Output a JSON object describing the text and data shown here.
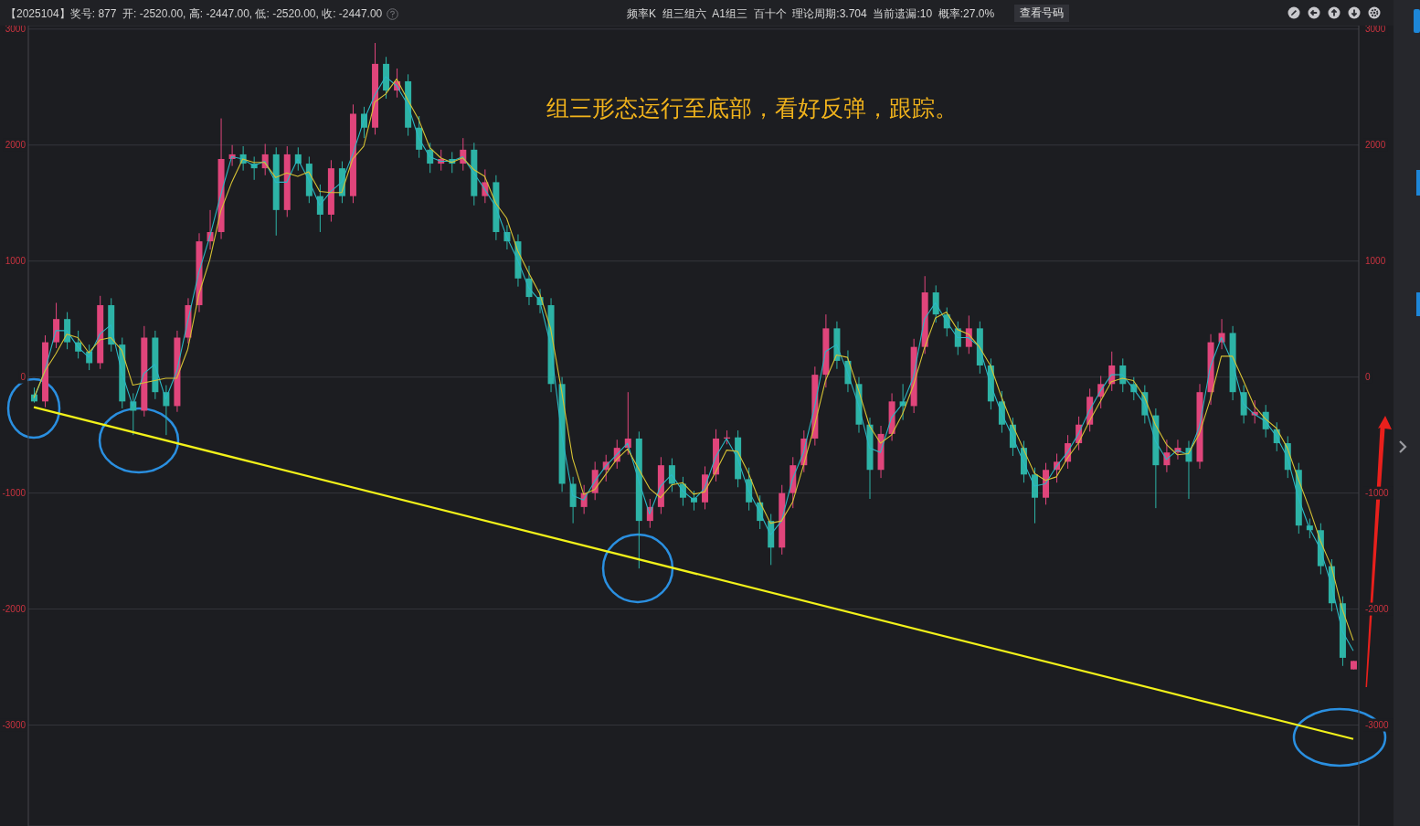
{
  "chart_data": {
    "type": "candlestick",
    "title": "【2025104】奖号: 877  开: -2520.00, 高: -2447.00, 低: -2520.00, 收: -2447.00",
    "subtitle": "频率K  组三组六  A1组三  百十个  理论周期:3.704  当前遗漏:10  概率:27.0%",
    "annotations": [
      "组三形态运行至底部，看好反弹，跟踪。",
      "查看号码"
    ],
    "categories": [
      null,
      null,
      null,
      null,
      null,
      null,
      null,
      null,
      null,
      null,
      null,
      null,
      null,
      null,
      null,
      null,
      null,
      null,
      null,
      null,
      null,
      null,
      null,
      null,
      null,
      null,
      null,
      null,
      null,
      null,
      null,
      null,
      null,
      null,
      null,
      null,
      null,
      null,
      null,
      null,
      null,
      null,
      null,
      null,
      null,
      null,
      null,
      null,
      null,
      null,
      null,
      null,
      null,
      null,
      null,
      null,
      null,
      null,
      null,
      null,
      null,
      null,
      null,
      null,
      null,
      null,
      null,
      null,
      null,
      null,
      null,
      null,
      null,
      null,
      null,
      null,
      null,
      null,
      null,
      null,
      null,
      null,
      null,
      null,
      null,
      null,
      null,
      null,
      null,
      null,
      null,
      null,
      null,
      null,
      null,
      null,
      null,
      null,
      null,
      null,
      null,
      null,
      null,
      null,
      null,
      null,
      null,
      null,
      null,
      null,
      null,
      null,
      null,
      null,
      null,
      null,
      null,
      null,
      null,
      null,
      null
    ],
    "ohlc": [
      [
        -150,
        -90,
        -220,
        -210
      ],
      [
        -210,
        360,
        -260,
        300
      ],
      [
        300,
        640,
        250,
        500
      ],
      [
        500,
        560,
        240,
        300
      ],
      [
        300,
        400,
        160,
        220
      ],
      [
        220,
        280,
        60,
        120
      ],
      [
        120,
        700,
        70,
        620
      ],
      [
        620,
        680,
        220,
        280
      ],
      [
        280,
        340,
        -270,
        -210
      ],
      [
        -210,
        -140,
        -500,
        -290
      ],
      [
        -290,
        440,
        -340,
        340
      ],
      [
        340,
        400,
        -190,
        -130
      ],
      [
        -130,
        -70,
        -500,
        -250
      ],
      [
        -250,
        400,
        -300,
        340
      ],
      [
        340,
        680,
        290,
        620
      ],
      [
        620,
        1240,
        560,
        1170
      ],
      [
        1170,
        1440,
        1100,
        1250
      ],
      [
        1250,
        2230,
        1190,
        1880
      ],
      [
        1880,
        2000,
        1820,
        1920
      ],
      [
        1920,
        1990,
        1780,
        1840
      ],
      [
        1840,
        1900,
        1700,
        1800
      ],
      [
        1800,
        2010,
        1740,
        1920
      ],
      [
        1920,
        1980,
        1220,
        1440
      ],
      [
        1440,
        1990,
        1380,
        1920
      ],
      [
        1920,
        1980,
        1780,
        1840
      ],
      [
        1840,
        1900,
        1500,
        1560
      ],
      [
        1560,
        1660,
        1250,
        1400
      ],
      [
        1400,
        1870,
        1340,
        1800
      ],
      [
        1800,
        1860,
        1500,
        1560
      ],
      [
        1560,
        2350,
        1500,
        2270
      ],
      [
        2270,
        2330,
        2060,
        2150
      ],
      [
        2150,
        2880,
        2090,
        2700
      ],
      [
        2700,
        2760,
        2400,
        2470
      ],
      [
        2470,
        2660,
        2410,
        2550
      ],
      [
        2550,
        2610,
        2080,
        2150
      ],
      [
        2150,
        2250,
        1890,
        1960
      ],
      [
        1960,
        2020,
        1760,
        1840
      ],
      [
        1840,
        1960,
        1780,
        1880
      ],
      [
        1880,
        1940,
        1760,
        1840
      ],
      [
        1840,
        2060,
        1780,
        1960
      ],
      [
        1960,
        2020,
        1480,
        1560
      ],
      [
        1560,
        1790,
        1500,
        1680
      ],
      [
        1680,
        1740,
        1180,
        1250
      ],
      [
        1250,
        1310,
        1100,
        1170
      ],
      [
        1170,
        1230,
        780,
        850
      ],
      [
        850,
        960,
        620,
        690
      ],
      [
        690,
        760,
        550,
        620
      ],
      [
        620,
        680,
        -130,
        -60
      ],
      [
        -60,
        0,
        -990,
        -920
      ],
      [
        -920,
        -860,
        -1260,
        -1120
      ],
      [
        -1120,
        -930,
        -1180,
        -1000
      ],
      [
        -1000,
        -730,
        -1060,
        -800
      ],
      [
        -800,
        -670,
        -900,
        -730
      ],
      [
        -730,
        -540,
        -790,
        -610
      ],
      [
        -610,
        -130,
        -670,
        -530
      ],
      [
        -530,
        -470,
        -1650,
        -1240
      ],
      [
        -1240,
        -1050,
        -1300,
        -1120
      ],
      [
        -1120,
        -690,
        -1180,
        -760
      ],
      [
        -760,
        -700,
        -990,
        -920
      ],
      [
        -920,
        -860,
        -1110,
        -1040
      ],
      [
        -1040,
        -980,
        -1150,
        -1080
      ],
      [
        -1080,
        -770,
        -1140,
        -840
      ],
      [
        -840,
        -450,
        -900,
        -530
      ],
      [
        -530,
        -460,
        -580,
        -520
      ],
      [
        -520,
        -460,
        -950,
        -880
      ],
      [
        -880,
        -780,
        -1150,
        -1080
      ],
      [
        -1080,
        -1020,
        -1310,
        -1240
      ],
      [
        -1240,
        -1180,
        -1620,
        -1470
      ],
      [
        -1470,
        -930,
        -1530,
        -1000
      ],
      [
        -1000,
        -690,
        -1130,
        -760
      ],
      [
        -760,
        -460,
        -820,
        -530
      ],
      [
        -530,
        90,
        -590,
        20
      ],
      [
        20,
        540,
        -90,
        420
      ],
      [
        420,
        480,
        70,
        140
      ],
      [
        140,
        230,
        -130,
        -60
      ],
      [
        -60,
        0,
        -480,
        -410
      ],
      [
        -410,
        -350,
        -1050,
        -800
      ],
      [
        -800,
        -420,
        -870,
        -490
      ],
      [
        -490,
        -140,
        -550,
        -210
      ],
      [
        -210,
        -60,
        -370,
        -250
      ],
      [
        -250,
        330,
        -310,
        260
      ],
      [
        260,
        870,
        200,
        730
      ],
      [
        730,
        790,
        470,
        540
      ],
      [
        540,
        600,
        350,
        420
      ],
      [
        420,
        480,
        190,
        260
      ],
      [
        260,
        530,
        200,
        420
      ],
      [
        420,
        480,
        30,
        100
      ],
      [
        100,
        160,
        -280,
        -210
      ],
      [
        -210,
        -120,
        -480,
        -410
      ],
      [
        -410,
        -350,
        -680,
        -610
      ],
      [
        -610,
        -550,
        -910,
        -840
      ],
      [
        -840,
        -780,
        -1260,
        -1040
      ],
      [
        -1040,
        -740,
        -1100,
        -800
      ],
      [
        -800,
        -660,
        -910,
        -730
      ],
      [
        -730,
        -500,
        -790,
        -570
      ],
      [
        -570,
        -340,
        -630,
        -410
      ],
      [
        -410,
        -100,
        -470,
        -170
      ],
      [
        -170,
        10,
        -270,
        -60
      ],
      [
        -60,
        220,
        -120,
        100
      ],
      [
        100,
        160,
        -130,
        -60
      ],
      [
        -60,
        0,
        -200,
        -130
      ],
      [
        -130,
        -70,
        -400,
        -330
      ],
      [
        -330,
        -270,
        -1130,
        -760
      ],
      [
        -760,
        -540,
        -820,
        -650
      ],
      [
        -650,
        -540,
        -710,
        -610
      ],
      [
        -610,
        -550,
        -1050,
        -730
      ],
      [
        -730,
        -60,
        -790,
        -130
      ],
      [
        -130,
        370,
        -240,
        300
      ],
      [
        300,
        500,
        240,
        380
      ],
      [
        380,
        440,
        -200,
        -130
      ],
      [
        -130,
        -70,
        -400,
        -330
      ],
      [
        -330,
        -200,
        -400,
        -300
      ],
      [
        -300,
        -240,
        -520,
        -450
      ],
      [
        -450,
        -390,
        -640,
        -570
      ],
      [
        -570,
        -510,
        -870,
        -800
      ],
      [
        -800,
        -740,
        -1350,
        -1280
      ],
      [
        -1280,
        -1220,
        -1390,
        -1320
      ],
      [
        -1320,
        -1260,
        -1700,
        -1630
      ],
      [
        -1630,
        -1570,
        -2020,
        -1950
      ],
      [
        -1950,
        -1890,
        -2490,
        -2420
      ],
      [
        -2520,
        -2447,
        -2520,
        -2447
      ]
    ],
    "colors": [
      "#2db3a6",
      "#e0457b",
      "#e0457b",
      "#2db3a6",
      "#2db3a6",
      "#2db3a6",
      "#e0457b",
      "#2db3a6",
      "#2db3a6",
      "#2db3a6",
      "#e0457b",
      "#2db3a6",
      "#2db3a6",
      "#e0457b",
      "#e0457b",
      "#e0457b",
      "#e0457b",
      "#e0457b",
      "#e0457b",
      "#2db3a6",
      "#2db3a6",
      "#e0457b",
      "#2db3a6",
      "#e0457b",
      "#2db3a6",
      "#2db3a6",
      "#2db3a6",
      "#e0457b",
      "#2db3a6",
      "#e0457b",
      "#2db3a6",
      "#e0457b",
      "#2db3a6",
      "#e0457b",
      "#2db3a6",
      "#2db3a6",
      "#2db3a6",
      "#e0457b",
      "#2db3a6",
      "#e0457b",
      "#2db3a6",
      "#e0457b",
      "#2db3a6",
      "#2db3a6",
      "#2db3a6",
      "#2db3a6",
      "#2db3a6",
      "#2db3a6",
      "#2db3a6",
      "#2db3a6",
      "#e0457b",
      "#e0457b",
      "#e0457b",
      "#e0457b",
      "#e0457b",
      "#2db3a6",
      "#e0457b",
      "#e0457b",
      "#2db3a6",
      "#2db3a6",
      "#2db3a6",
      "#e0457b",
      "#e0457b",
      "#e0457b",
      "#2db3a6",
      "#2db3a6",
      "#2db3a6",
      "#2db3a6",
      "#e0457b",
      "#e0457b",
      "#e0457b",
      "#e0457b",
      "#e0457b",
      "#2db3a6",
      "#2db3a6",
      "#2db3a6",
      "#2db3a6",
      "#e0457b",
      "#e0457b",
      "#2db3a6",
      "#e0457b",
      "#e0457b",
      "#2db3a6",
      "#2db3a6",
      "#2db3a6",
      "#e0457b",
      "#2db3a6",
      "#2db3a6",
      "#2db3a6",
      "#2db3a6",
      "#2db3a6",
      "#2db3a6",
      "#e0457b",
      "#e0457b",
      "#e0457b",
      "#e0457b",
      "#e0457b",
      "#e0457b",
      "#e0457b",
      "#2db3a6",
      "#2db3a6",
      "#2db3a6",
      "#2db3a6",
      "#e0457b",
      "#e0457b",
      "#2db3a6",
      "#e0457b",
      "#e0457b",
      "#e0457b",
      "#2db3a6",
      "#2db3a6",
      "#e0457b",
      "#2db3a6",
      "#2db3a6",
      "#2db3a6",
      "#2db3a6",
      "#2db3a6",
      "#2db3a6",
      "#2db3a6",
      "#2db3a6",
      "#e0457b"
    ],
    "series": [
      {
        "type": "line",
        "color": "#2ab8c4",
        "values": [
          -190,
          50,
          400,
          400,
          260,
          170,
          370,
          450,
          40,
          -250,
          30,
          110,
          -190,
          50,
          480,
          900,
          1210,
          1570,
          1900,
          1880,
          1820,
          1860,
          1680,
          1680,
          1880,
          1700,
          1480,
          1600,
          1680,
          1920,
          2210,
          2430,
          2590,
          2510,
          2350,
          2060,
          1900,
          1860,
          1860,
          1900,
          1760,
          1620,
          1470,
          1210,
          1010,
          770,
          660,
          280,
          -490,
          -1020,
          -1060,
          -900,
          -770,
          -670,
          -570,
          -890,
          -1180,
          -940,
          -840,
          -980,
          -1060,
          -960,
          -690,
          -530,
          -700,
          -980,
          -1160,
          -1360,
          -1240,
          -880,
          -650,
          -260,
          220,
          280,
          40,
          -240,
          -610,
          -650,
          -350,
          -230,
          0,
          500,
          640,
          480,
          340,
          340,
          260,
          -60,
          -310,
          -510,
          -730,
          -940,
          -920,
          -770,
          -650,
          -490,
          -290,
          -120,
          20,
          20,
          -100,
          -230,
          -550,
          -710,
          -630,
          -670,
          -430,
          90,
          340,
          130,
          -230,
          -320,
          -380,
          -510,
          -690,
          -1040,
          -1300,
          -1480,
          -1790,
          -2190,
          -2360
        ]
      },
      {
        "type": "line",
        "color": "#d6c234",
        "values": [
          -180,
          50,
          200,
          370,
          340,
          210,
          320,
          340,
          230,
          -70,
          -50,
          -30,
          -10,
          -10,
          240,
          710,
          1010,
          1430,
          1680,
          1880,
          1850,
          1850,
          1720,
          1760,
          1730,
          1770,
          1600,
          1590,
          1590,
          1880,
          1990,
          2370,
          2440,
          2570,
          2390,
          2220,
          1980,
          1890,
          1850,
          1890,
          1790,
          1730,
          1500,
          1370,
          1090,
          900,
          720,
          420,
          -120,
          -700,
          -1010,
          -970,
          -840,
          -710,
          -620,
          -790,
          -960,
          -1040,
          -930,
          -910,
          -1010,
          -990,
          -820,
          -630,
          -640,
          -830,
          -1070,
          -1260,
          -1240,
          -1080,
          -760,
          -420,
          -30,
          190,
          170,
          -110,
          -420,
          -570,
          -500,
          -320,
          -70,
          250,
          510,
          560,
          410,
          370,
          260,
          100,
          -170,
          -410,
          -620,
          -830,
          -890,
          -860,
          -700,
          -570,
          -380,
          -210,
          -40,
          -10,
          -30,
          -170,
          -410,
          -580,
          -670,
          -660,
          -490,
          -190,
          180,
          180,
          -30,
          -250,
          -360,
          -440,
          -610,
          -880,
          -1130,
          -1410,
          -1630,
          -2000,
          -2270
        ]
      },
      {
        "type": "line",
        "color": "#f2f21a",
        "values": [
          -260,
          null,
          null,
          null,
          null,
          null,
          null,
          null,
          null,
          null,
          null,
          null,
          null,
          null,
          null,
          null,
          null,
          null,
          null,
          null,
          null,
          null,
          null,
          null,
          null,
          null,
          null,
          null,
          null,
          null,
          null,
          null,
          null,
          null,
          null,
          null,
          null,
          null,
          null,
          null,
          null,
          null,
          null,
          null,
          null,
          null,
          null,
          null,
          null,
          null,
          null,
          null,
          null,
          null,
          null,
          null,
          null,
          null,
          null,
          null,
          null,
          null,
          null,
          null,
          null,
          null,
          null,
          null,
          null,
          null,
          null,
          null,
          null,
          null,
          null,
          null,
          null,
          null,
          null,
          null,
          null,
          null,
          null,
          null,
          null,
          null,
          null,
          null,
          null,
          null,
          null,
          null,
          null,
          null,
          null,
          null,
          null,
          null,
          null,
          null,
          null,
          null,
          null,
          null,
          null,
          null,
          null,
          null,
          null,
          null,
          null,
          null,
          null,
          null,
          null,
          null,
          null,
          null,
          null,
          null,
          -3120
        ]
      }
    ],
    "ylim": [
      -3870,
      3030
    ],
    "yticks": [
      -3000,
      -2000,
      -1000,
      0,
      1000,
      2000,
      3000
    ],
    "y2lim": [
      -3870,
      3030
    ],
    "y2ticks": [
      -3000,
      -2000,
      -1000,
      0,
      1000,
      2000,
      3000
    ],
    "grid": "y",
    "tick_labels": "y"
  }
}
